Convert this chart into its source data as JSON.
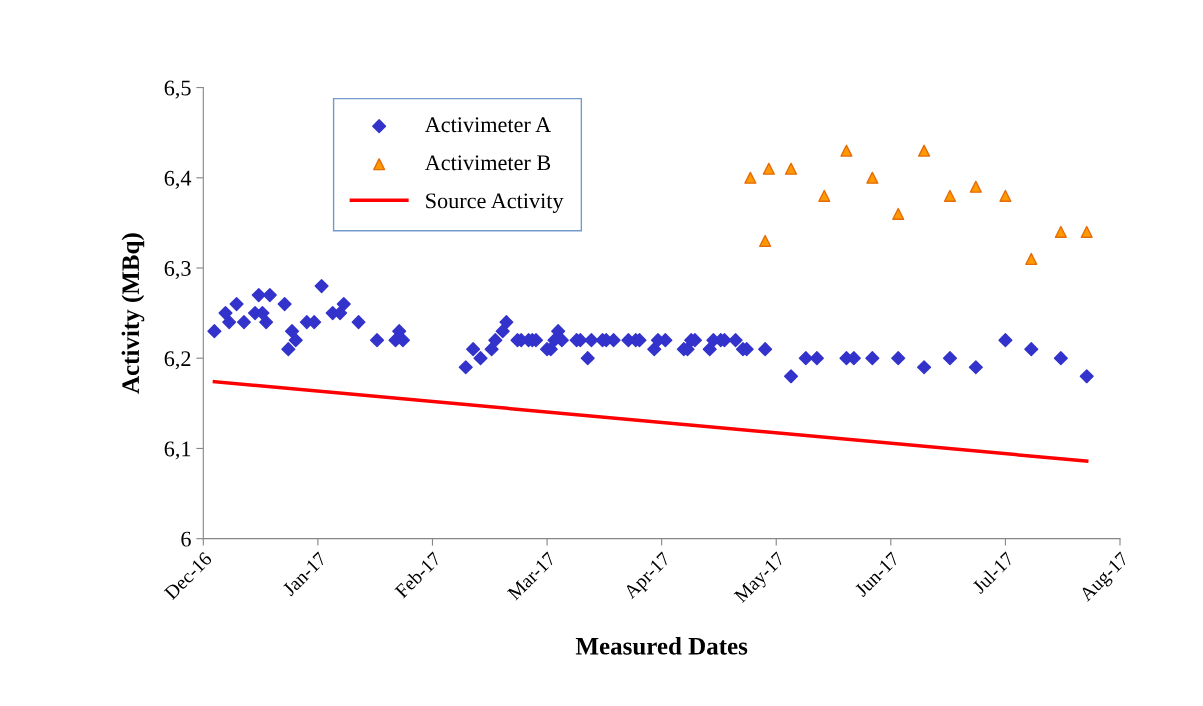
{
  "chart_data": {
    "type": "scatter",
    "xlabel": "Measured Dates",
    "ylabel": "Activity (MBq)",
    "xlim": [
      "2016-12-01",
      "2017-08-06"
    ],
    "xticks": [
      {
        "value": "2016-12-01",
        "label": "Dec-16"
      },
      {
        "value": "2017-01-01",
        "label": "Jan-17"
      },
      {
        "value": "2017-02-01",
        "label": "Feb-17"
      },
      {
        "value": "2017-03-04",
        "label": "Mar-17"
      },
      {
        "value": "2017-04-04",
        "label": "Apr-17"
      },
      {
        "value": "2017-05-05",
        "label": "May-17"
      },
      {
        "value": "2017-06-05",
        "label": "Jun-17"
      },
      {
        "value": "2017-07-06",
        "label": "Jul-17"
      },
      {
        "value": "2017-08-06",
        "label": "Aug-17"
      }
    ],
    "ylim": [
      6,
      6.5
    ],
    "yticks": [
      {
        "value": 6,
        "label": "6"
      },
      {
        "value": 6.1,
        "label": "6,1"
      },
      {
        "value": 6.2,
        "label": "6,2"
      },
      {
        "value": 6.3,
        "label": "6,3"
      },
      {
        "value": 6.4,
        "label": "6,4"
      },
      {
        "value": 6.5,
        "label": "6,5"
      }
    ],
    "grid": false,
    "legend": "top left",
    "series": [
      {
        "name": "Activimeter A",
        "color": "#3333cc",
        "marker": "diamond",
        "x": [
          "2016-12-04",
          "2016-12-07",
          "2016-12-08",
          "2016-12-10",
          "2016-12-12",
          "2016-12-15",
          "2016-12-16",
          "2016-12-17",
          "2016-12-18",
          "2016-12-19",
          "2016-12-23",
          "2016-12-24",
          "2016-12-25",
          "2016-12-26",
          "2016-12-29",
          "2016-12-31",
          "2017-01-02",
          "2017-01-05",
          "2017-01-07",
          "2017-01-08",
          "2017-01-12",
          "2017-01-17",
          "2017-01-22",
          "2017-01-23",
          "2017-01-24",
          "2017-02-10",
          "2017-02-12",
          "2017-02-14",
          "2017-02-17",
          "2017-02-18",
          "2017-02-20",
          "2017-02-21",
          "2017-02-24",
          "2017-02-25",
          "2017-02-27",
          "2017-02-28",
          "2017-03-01",
          "2017-03-04",
          "2017-03-05",
          "2017-03-06",
          "2017-03-07",
          "2017-03-08",
          "2017-03-12",
          "2017-03-13",
          "2017-03-15",
          "2017-03-16",
          "2017-03-19",
          "2017-03-20",
          "2017-03-22",
          "2017-03-26",
          "2017-03-28",
          "2017-03-29",
          "2017-04-02",
          "2017-04-03",
          "2017-04-05",
          "2017-04-10",
          "2017-04-11",
          "2017-04-12",
          "2017-04-13",
          "2017-04-17",
          "2017-04-18",
          "2017-04-20",
          "2017-04-21",
          "2017-04-24",
          "2017-04-26",
          "2017-04-27",
          "2017-05-02",
          "2017-05-09",
          "2017-05-13",
          "2017-05-16",
          "2017-05-24",
          "2017-05-26",
          "2017-05-31",
          "2017-06-07",
          "2017-06-14",
          "2017-06-21",
          "2017-06-28",
          "2017-07-06",
          "2017-07-13",
          "2017-07-21",
          "2017-07-28"
        ],
        "values": [
          6.23,
          6.25,
          6.24,
          6.26,
          6.24,
          6.25,
          6.27,
          6.25,
          6.24,
          6.27,
          6.26,
          6.21,
          6.23,
          6.22,
          6.24,
          6.24,
          6.28,
          6.25,
          6.25,
          6.26,
          6.24,
          6.22,
          6.22,
          6.23,
          6.22,
          6.19,
          6.21,
          6.2,
          6.21,
          6.22,
          6.23,
          6.24,
          6.22,
          6.22,
          6.22,
          6.22,
          6.22,
          6.21,
          6.21,
          6.22,
          6.23,
          6.22,
          6.22,
          6.22,
          6.2,
          6.22,
          6.22,
          6.22,
          6.22,
          6.22,
          6.22,
          6.22,
          6.21,
          6.22,
          6.22,
          6.21,
          6.21,
          6.22,
          6.22,
          6.21,
          6.22,
          6.22,
          6.22,
          6.22,
          6.21,
          6.21,
          6.21,
          6.18,
          6.2,
          6.2,
          6.2,
          6.2,
          6.2,
          6.2,
          6.19,
          6.2,
          6.19,
          6.22,
          6.21,
          6.2,
          6.18
        ]
      },
      {
        "name": "Activimeter B",
        "color": "#ff9900",
        "marker": "triangle",
        "x": [
          "2017-04-28",
          "2017-05-02",
          "2017-05-03",
          "2017-05-09",
          "2017-05-18",
          "2017-05-24",
          "2017-05-31",
          "2017-06-07",
          "2017-06-14",
          "2017-06-21",
          "2017-06-28",
          "2017-07-06",
          "2017-07-13",
          "2017-07-21",
          "2017-07-28"
        ],
        "values": [
          6.4,
          6.33,
          6.41,
          6.41,
          6.38,
          6.43,
          6.4,
          6.36,
          6.43,
          6.38,
          6.39,
          6.38,
          6.31,
          6.34,
          6.34
        ]
      },
      {
        "name": "Source Activity",
        "type": "line",
        "color": "#ff0000",
        "marker": "none",
        "line_style": "solid",
        "x": [
          "2016-12-04",
          "2017-07-28"
        ],
        "values": [
          6.174,
          6.086
        ]
      }
    ]
  }
}
